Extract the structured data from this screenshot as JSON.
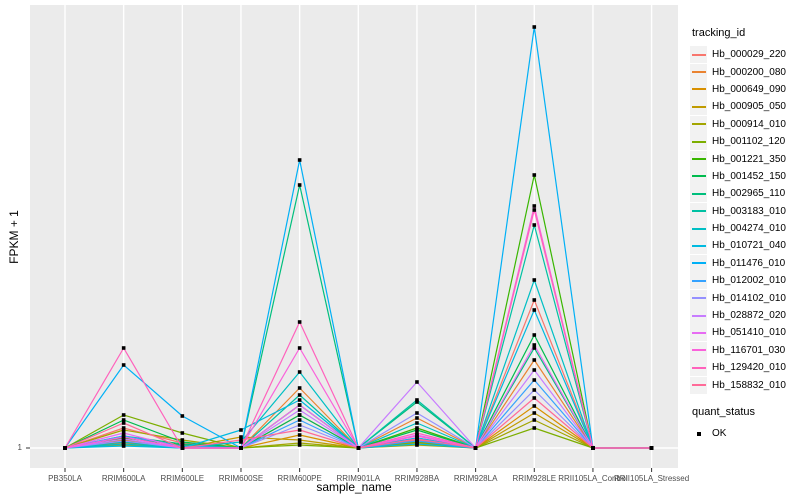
{
  "figure": {
    "background": "#FFFFFF",
    "panel_bg": "#EBEBEB",
    "grid_color": "#FFFFFF",
    "axis_tick_color": "#333333",
    "tick_label_color": "#4D4D4D",
    "point_color": "#000000"
  },
  "y_axis": {
    "title": "FPKM + 1",
    "tick_label": "1"
  },
  "x_axis": {
    "title": "sample_name"
  },
  "legend": {
    "tracking": {
      "title": "tracking_id"
    },
    "quant": {
      "title": "quant_status",
      "ok_label": "OK"
    }
  },
  "chart_data": {
    "type": "line",
    "title": "",
    "xlabel": "sample_name",
    "ylabel": "FPKM + 1",
    "legend_position": "right",
    "grid": "major vertical gridlines per sample plus horizontal gridline at y = 1",
    "point_marker": "small black square (quant_status = OK) at every data point",
    "y_units": "relative height above the FPKM+1 = 1 baseline; '1' is the only labeled y-axis break",
    "ylim": [
      0,
      440
    ],
    "categories": [
      "PB350LA",
      "RRIM600LA",
      "RRIM600LE",
      "RRIM600SE",
      "RRIM600PE",
      "RRIM901LA",
      "RRIM928BA",
      "RRIM928LA",
      "RRIM928LE",
      "RRII105LA_Control",
      "RRII105LA_Stressed"
    ],
    "series": [
      {
        "name": "Hb_000029_220",
        "color": "#F8766D",
        "values": [
          0,
          20,
          5,
          0,
          33,
          0,
          8,
          0,
          148,
          0,
          0
        ]
      },
      {
        "name": "Hb_000200_080",
        "color": "#EA8331",
        "values": [
          0,
          5,
          0,
          0,
          60,
          0,
          30,
          0,
          88,
          0,
          0
        ]
      },
      {
        "name": "Hb_000649_090",
        "color": "#D89000",
        "values": [
          0,
          8,
          0,
          0,
          13,
          0,
          10,
          0,
          42,
          0,
          0
        ]
      },
      {
        "name": "Hb_000905_050",
        "color": "#C09B00",
        "values": [
          0,
          3,
          0,
          11,
          8,
          0,
          5,
          0,
          35,
          0,
          0
        ]
      },
      {
        "name": "Hb_000914_010",
        "color": "#A3A500",
        "values": [
          0,
          18,
          8,
          0,
          5,
          0,
          3,
          0,
          28,
          0,
          0
        ]
      },
      {
        "name": "Hb_001102_120",
        "color": "#7CAE00",
        "values": [
          0,
          33,
          15,
          0,
          3,
          0,
          6,
          0,
          20,
          0,
          0
        ]
      },
      {
        "name": "Hb_001221_350",
        "color": "#39B600",
        "values": [
          0,
          10,
          3,
          0,
          43,
          0,
          20,
          0,
          273,
          0,
          0
        ]
      },
      {
        "name": "Hb_001452_150",
        "color": "#00BB4E",
        "values": [
          0,
          28,
          6,
          0,
          33,
          0,
          18,
          0,
          113,
          0,
          0
        ]
      },
      {
        "name": "Hb_002965_110",
        "color": "#00BF7D",
        "values": [
          0,
          12,
          4,
          0,
          263,
          0,
          46,
          0,
          100,
          0,
          0
        ]
      },
      {
        "name": "Hb_003183_010",
        "color": "#00C1A3",
        "values": [
          0,
          6,
          0,
          0,
          53,
          0,
          48,
          0,
          223,
          0,
          0
        ]
      },
      {
        "name": "Hb_004274_010",
        "color": "#00BFC4",
        "values": [
          0,
          4,
          0,
          6,
          76,
          0,
          25,
          0,
          168,
          0,
          0
        ]
      },
      {
        "name": "Hb_010721_040",
        "color": "#00BAE0",
        "values": [
          0,
          2,
          0,
          18,
          48,
          0,
          4,
          0,
          138,
          0,
          0
        ]
      },
      {
        "name": "Hb_011476_010",
        "color": "#00B0F6",
        "values": [
          0,
          83,
          32,
          0,
          288,
          0,
          10,
          0,
          421,
          0,
          0
        ]
      },
      {
        "name": "Hb_012002_010",
        "color": "#35A2FF",
        "values": [
          0,
          12,
          2,
          0,
          28,
          0,
          7,
          0,
          68,
          0,
          0
        ]
      },
      {
        "name": "Hb_014102_010",
        "color": "#9590FF",
        "values": [
          0,
          7,
          0,
          0,
          23,
          0,
          35,
          0,
          58,
          0,
          0
        ]
      },
      {
        "name": "Hb_028872_020",
        "color": "#C77CFF",
        "values": [
          0,
          9,
          0,
          0,
          38,
          0,
          66,
          0,
          78,
          0,
          0
        ]
      },
      {
        "name": "Hb_051410_010",
        "color": "#E76BF3",
        "values": [
          0,
          15,
          0,
          0,
          43,
          0,
          13,
          0,
          103,
          0,
          0
        ]
      },
      {
        "name": "Hb_116701_030",
        "color": "#FA62DB",
        "values": [
          0,
          11,
          0,
          0,
          100,
          0,
          12,
          0,
          242,
          0,
          0
        ]
      },
      {
        "name": "Hb_129420_010",
        "color": "#FF62BC",
        "values": [
          0,
          100,
          0,
          0,
          126,
          0,
          15,
          0,
          238,
          0,
          0
        ]
      },
      {
        "name": "Hb_158832_010",
        "color": "#FF6A98",
        "values": [
          0,
          25,
          0,
          8,
          18,
          0,
          9,
          0,
          50,
          0,
          0
        ]
      }
    ]
  }
}
